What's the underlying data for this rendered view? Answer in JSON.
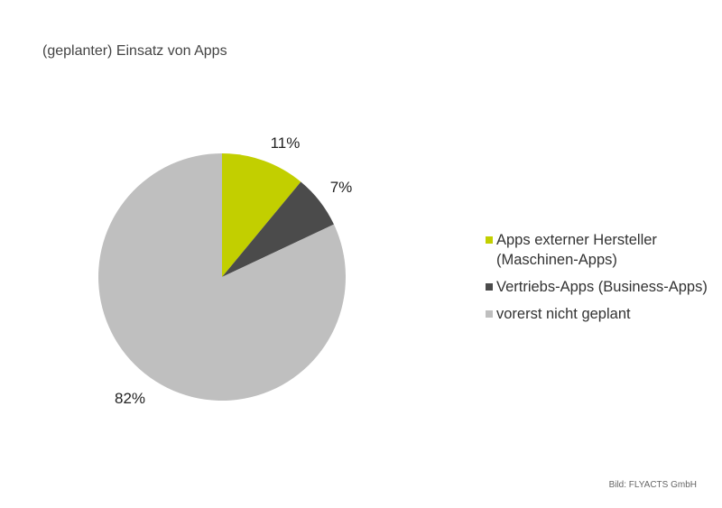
{
  "chart_data": {
    "type": "pie",
    "title": "(geplanter) Einsatz von Apps",
    "slices": [
      {
        "name": "Apps externer Hersteller (Maschinen-Apps)",
        "value": 11,
        "label": "11%",
        "color": "#c2cf00"
      },
      {
        "name": "Vertriebs-Apps (Business-Apps)",
        "value": 7,
        "label": "7%",
        "color": "#4b4b4b"
      },
      {
        "name": "vorerst nicht geplant",
        "value": 82,
        "label": "82%",
        "color": "#bfbfbf"
      }
    ],
    "legend_position": "right"
  },
  "credit": "Bild: FLYACTS GmbH"
}
